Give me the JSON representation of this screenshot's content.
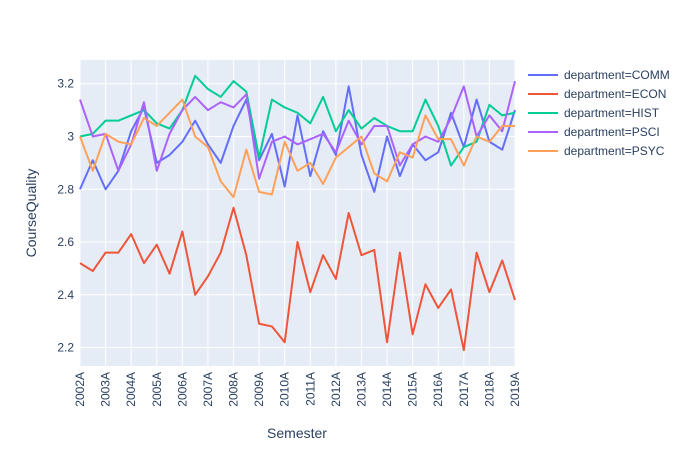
{
  "chart_data": {
    "type": "line",
    "xlabel": "Semester",
    "ylabel": "CourseQuality",
    "x": [
      "2002A",
      "2002B",
      "2003A",
      "2003B",
      "2004A",
      "2004B",
      "2005A",
      "2005B",
      "2006A",
      "2006B",
      "2007A",
      "2007B",
      "2008A",
      "2008B",
      "2009A",
      "2009B",
      "2010A",
      "2010B",
      "2011A",
      "2011B",
      "2012A",
      "2012B",
      "2013A",
      "2013B",
      "2014A",
      "2014B",
      "2015A",
      "2015B",
      "2016A",
      "2016B",
      "2017A",
      "2017B",
      "2018A",
      "2018B",
      "2019A"
    ],
    "x_tick_labels": [
      "2002A",
      "2003A",
      "2004A",
      "2005A",
      "2006A",
      "2007A",
      "2008A",
      "2009A",
      "2010A",
      "2011A",
      "2012A",
      "2013A",
      "2014A",
      "2015A",
      "2016A",
      "2017A",
      "2018A",
      "2019A"
    ],
    "y_tick_labels": [
      "2.2",
      "2.4",
      "2.6",
      "2.8",
      "3",
      "3.2"
    ],
    "ylim": [
      2.13,
      3.29
    ],
    "grid": true,
    "legend_position": "top-right",
    "series": [
      {
        "name": "department=COMM",
        "color": "#636efa",
        "values": [
          2.8,
          2.91,
          2.8,
          2.87,
          3.02,
          3.11,
          2.9,
          2.93,
          2.98,
          3.06,
          2.97,
          2.9,
          3.04,
          3.14,
          2.91,
          3.01,
          2.81,
          3.08,
          2.85,
          3.02,
          2.93,
          3.19,
          2.93,
          2.79,
          3.0,
          2.85,
          2.97,
          2.91,
          2.94,
          3.09,
          2.96,
          3.14,
          2.98,
          2.95,
          3.1
        ]
      },
      {
        "name": "department=ECON",
        "color": "#ef553b",
        "values": [
          2.52,
          2.49,
          2.56,
          2.56,
          2.63,
          2.52,
          2.59,
          2.48,
          2.64,
          2.4,
          2.47,
          2.56,
          2.73,
          2.55,
          2.29,
          2.28,
          2.22,
          2.6,
          2.41,
          2.55,
          2.46,
          2.71,
          2.55,
          2.57,
          2.22,
          2.56,
          2.25,
          2.44,
          2.35,
          2.42,
          2.19,
          2.56,
          2.41,
          2.53,
          2.38
        ]
      },
      {
        "name": "department=HIST",
        "color": "#00cc96",
        "values": [
          3.0,
          3.01,
          3.06,
          3.06,
          3.08,
          3.1,
          3.05,
          3.03,
          3.1,
          3.23,
          3.18,
          3.15,
          3.21,
          3.17,
          2.92,
          3.14,
          3.11,
          3.09,
          3.05,
          3.15,
          3.02,
          3.1,
          3.03,
          3.07,
          3.04,
          3.02,
          3.02,
          3.14,
          3.04,
          2.89,
          2.96,
          2.98,
          3.12,
          3.08,
          3.09
        ]
      },
      {
        "name": "department=PSCI",
        "color": "#ab63fa",
        "values": [
          3.14,
          3.0,
          3.01,
          2.87,
          2.97,
          3.13,
          2.87,
          3.01,
          3.1,
          3.15,
          3.1,
          3.13,
          3.11,
          3.16,
          2.84,
          2.98,
          3.0,
          2.97,
          2.99,
          3.01,
          2.94,
          3.06,
          2.97,
          3.04,
          3.04,
          2.89,
          2.97,
          3.0,
          2.98,
          3.07,
          3.19,
          3.0,
          3.08,
          3.02,
          3.21
        ]
      },
      {
        "name": "department=PSYC",
        "color": "#ffa15a",
        "values": [
          3.0,
          2.87,
          3.01,
          2.98,
          2.97,
          3.07,
          3.04,
          3.09,
          3.14,
          3.0,
          2.96,
          2.83,
          2.77,
          2.95,
          2.79,
          2.78,
          2.98,
          2.87,
          2.9,
          2.82,
          2.92,
          2.96,
          3.0,
          2.86,
          2.83,
          2.94,
          2.92,
          3.08,
          2.99,
          2.99,
          2.89,
          3.0,
          2.98,
          3.04,
          3.04
        ]
      }
    ]
  }
}
